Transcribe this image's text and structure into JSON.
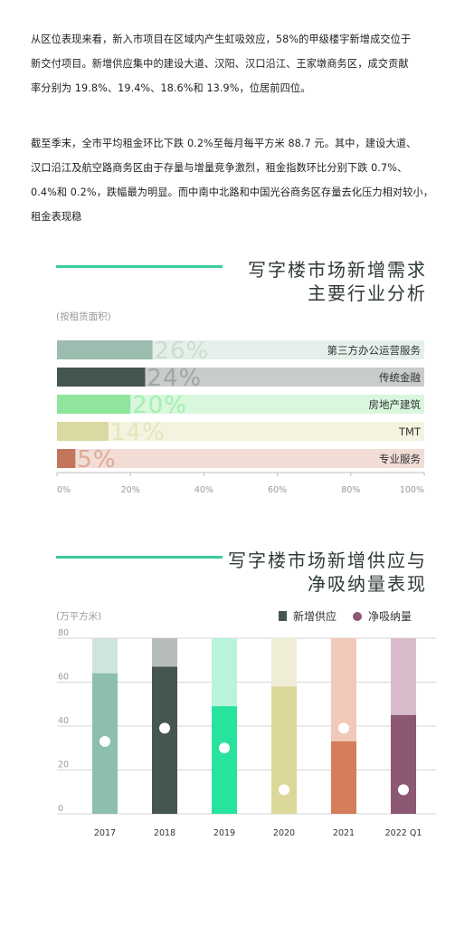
{
  "text": {
    "p1": [
      "从区位表现来看，新入市项目在区域内产生虹吸效应，58%的甲级楼宇新增成交位于",
      "新交付项目。新增供应集中的建设大道、汉阳、汉口沿江、王家墩商务区，成交贡献",
      "率分别为 19.8%、19.4%、18.6%和 13.9%，位居前四位。"
    ],
    "p2": [
      "截至季末，全市平均租金环比下跌 0.2%至每月每平方米 88.7 元。其中，建设大道、",
      "汉口沿江及航空路商务区由于存量与增量竞争激烈，租金指数环比分别下跌 0.7%、",
      "0.4%和 0.2%，跌幅最为明显。而中南中北路和中国光谷商务区存量去化压力相对较小，",
      "租金表现稳"
    ]
  },
  "chart_data": [
    {
      "type": "bar",
      "orientation": "horizontal",
      "title": [
        "写字楼市场新增需求",
        "主要行业分析"
      ],
      "unit_label": "(按租赁面积)",
      "categories": [
        "第三方办公运营服务",
        "传统金融",
        "房地产建筑",
        "TMT",
        "专业服务"
      ],
      "values": [
        26,
        24,
        20,
        14,
        5
      ],
      "value_labels": [
        "26%",
        "24%",
        "20%",
        "14%",
        "5%"
      ],
      "xlim": [
        0,
        100
      ],
      "xticks": [
        "0%",
        "20%",
        "40%",
        "60%",
        "80%",
        "100%"
      ],
      "colors": [
        "#9bbcae",
        "#455552",
        "#8fe59b",
        "#d9d9a1",
        "#c2775c"
      ],
      "bg_colors": [
        "#e4f0e9",
        "#c8cccb",
        "#d8f7dd",
        "#f3f3df",
        "#f1ddd6"
      ],
      "label_colors": [
        "#c9ddd3",
        "#9ea7a5",
        "#a4efb1",
        "#e4e4bd",
        "#dfaa98"
      ]
    },
    {
      "type": "bar",
      "orientation": "vertical",
      "title": [
        "写字楼市场新增供应与",
        "净吸纳量表现"
      ],
      "unit_label": "(万平方米)",
      "categories": [
        "2017",
        "2018",
        "2019",
        "2020",
        "2021",
        "2022 Q1"
      ],
      "series": [
        {
          "name": "新增供应",
          "values": [
            64,
            67,
            49,
            58,
            33,
            45
          ]
        },
        {
          "name": "净吸纳量",
          "values": [
            33,
            39,
            30,
            11,
            39,
            11
          ]
        }
      ],
      "ylim": [
        0,
        80
      ],
      "yticks": [
        0,
        20,
        40,
        60,
        80
      ],
      "bar_colors": [
        "#8cbfae",
        "#455552",
        "#27e39b",
        "#dcd89a",
        "#d47d5b",
        "#8d5874"
      ],
      "bg_colors": [
        "#cfe4dc",
        "#b5bcbb",
        "#b9f3da",
        "#efedd6",
        "#f1c9b9",
        "#d8bccb"
      ],
      "legend_colors": {
        "supply": "#455552",
        "absorption": "#8d5874"
      }
    }
  ]
}
